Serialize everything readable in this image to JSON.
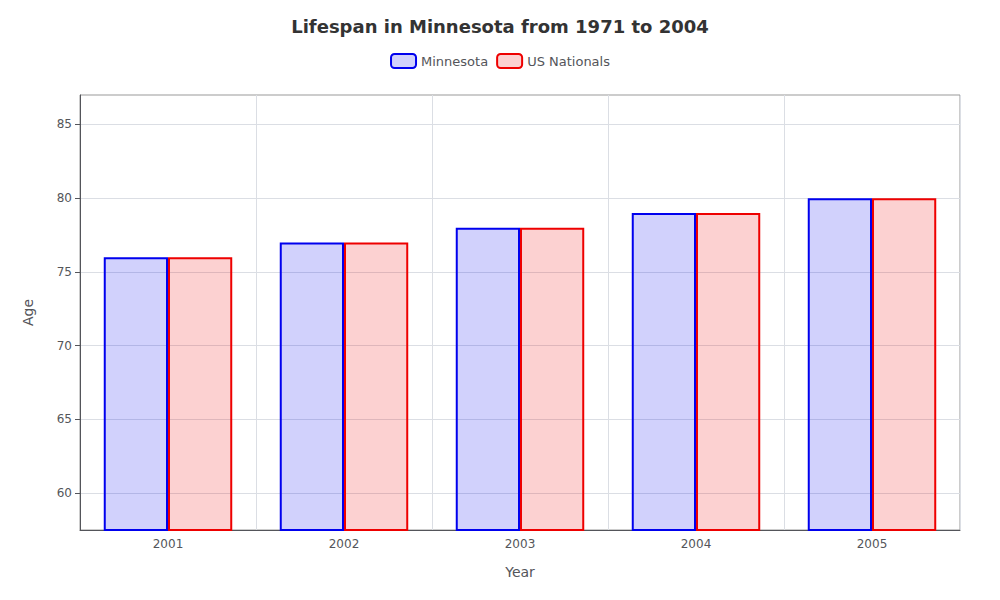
{
  "chart_data": {
    "type": "bar",
    "title": "Lifespan in Minnesota from 1971 to 2004",
    "xlabel": "Year",
    "ylabel": "Age",
    "categories": [
      "2001",
      "2002",
      "2003",
      "2004",
      "2005"
    ],
    "series": [
      {
        "name": "Minnesota",
        "color": "#0000ee",
        "values": [
          76.0,
          77.0,
          78.0,
          79.0,
          80.0
        ]
      },
      {
        "name": "US Nationals",
        "color": "#ee0000",
        "values": [
          76.0,
          77.0,
          78.0,
          79.0,
          80.0
        ]
      }
    ],
    "ylim": [
      57.5,
      87
    ],
    "yticks": [
      60,
      65,
      70,
      75,
      80,
      85
    ],
    "grid": true,
    "legend": "top"
  }
}
